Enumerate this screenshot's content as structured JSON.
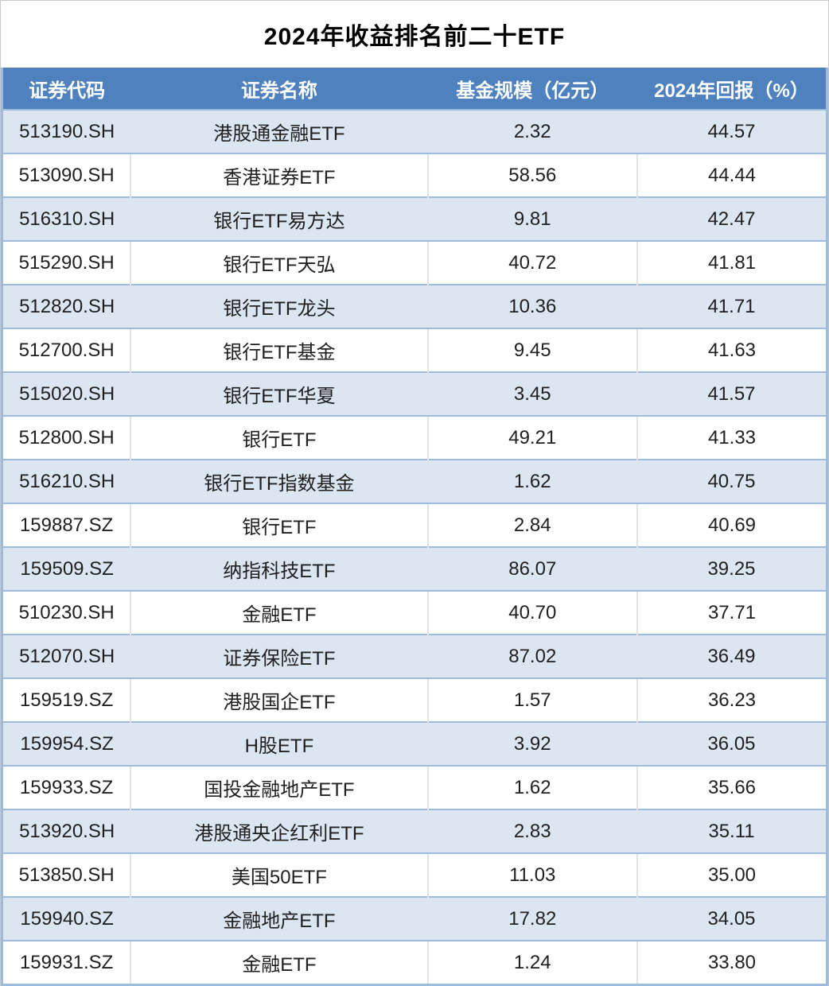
{
  "colors": {
    "header_bg": "#4e81bd",
    "header_text": "#ffffff",
    "band_row_bg": "#dce6f1",
    "plain_row_bg": "#ffffff",
    "row_rule": "#9dbcdd",
    "cell_divider": "#e2e2e2",
    "body_text": "#1f1f1f",
    "title_text": "#000000"
  },
  "chart_data": {
    "type": "table",
    "title": "2024年收益排名前二十ETF",
    "columns": [
      "证券代码",
      "证券名称",
      "基金规模（亿元）",
      "2024年回报（%）"
    ],
    "rows": [
      [
        "513190.SH",
        "港股通金融ETF",
        "2.32",
        "44.57"
      ],
      [
        "513090.SH",
        "香港证券ETF",
        "58.56",
        "44.44"
      ],
      [
        "516310.SH",
        "银行ETF易方达",
        "9.81",
        "42.47"
      ],
      [
        "515290.SH",
        "银行ETF天弘",
        "40.72",
        "41.81"
      ],
      [
        "512820.SH",
        "银行ETF龙头",
        "10.36",
        "41.71"
      ],
      [
        "512700.SH",
        "银行ETF基金",
        "9.45",
        "41.63"
      ],
      [
        "515020.SH",
        "银行ETF华夏",
        "3.45",
        "41.57"
      ],
      [
        "512800.SH",
        "银行ETF",
        "49.21",
        "41.33"
      ],
      [
        "516210.SH",
        "银行ETF指数基金",
        "1.62",
        "40.75"
      ],
      [
        "159887.SZ",
        "银行ETF",
        "2.84",
        "40.69"
      ],
      [
        "159509.SZ",
        "纳指科技ETF",
        "86.07",
        "39.25"
      ],
      [
        "510230.SH",
        "金融ETF",
        "40.70",
        "37.71"
      ],
      [
        "512070.SH",
        "证券保险ETF",
        "87.02",
        "36.49"
      ],
      [
        "159519.SZ",
        "港股国企ETF",
        "1.57",
        "36.23"
      ],
      [
        "159954.SZ",
        "H股ETF",
        "3.92",
        "36.05"
      ],
      [
        "159933.SZ",
        "国投金融地产ETF",
        "1.62",
        "35.66"
      ],
      [
        "513920.SH",
        "港股通央企红利ETF",
        "2.83",
        "35.11"
      ],
      [
        "513850.SH",
        "美国50ETF",
        "11.03",
        "35.00"
      ],
      [
        "159940.SZ",
        "金融地产ETF",
        "17.82",
        "34.05"
      ],
      [
        "159931.SZ",
        "金融ETF",
        "1.24",
        "33.80"
      ]
    ]
  }
}
